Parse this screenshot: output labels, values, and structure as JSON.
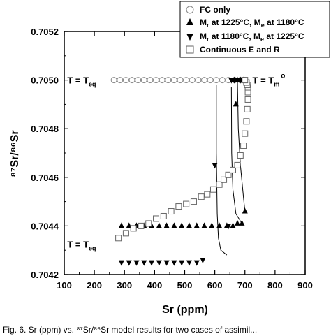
{
  "chart_data": {
    "type": "scatter",
    "xlabel": "Sr (ppm)",
    "ylabel": "⁸⁷Sr/⁸⁶Sr",
    "xlim": [
      100,
      900
    ],
    "ylim": [
      0.7042,
      0.7052
    ],
    "xticks": [
      "100",
      "200",
      "300",
      "400",
      "500",
      "600",
      "700",
      "800",
      "900"
    ],
    "yticks": [
      "0.7042",
      "0.7044",
      "0.7046",
      "0.7048",
      "0.7050",
      "0.7052"
    ],
    "legend_position": "top-right",
    "series": [
      {
        "name": "FC only",
        "marker": "open-circle",
        "color": "#888888",
        "x": [
          265,
          285,
          305,
          325,
          345,
          365,
          385,
          405,
          425,
          445,
          465,
          485,
          505,
          525,
          545,
          565,
          585,
          605,
          625,
          645,
          665,
          685,
          700
        ],
        "y": [
          0.705,
          0.705,
          0.705,
          0.705,
          0.705,
          0.705,
          0.705,
          0.705,
          0.705,
          0.705,
          0.705,
          0.705,
          0.705,
          0.705,
          0.705,
          0.705,
          0.705,
          0.705,
          0.705,
          0.705,
          0.705,
          0.705,
          0.705
        ]
      },
      {
        "name_prefix": "M",
        "name_sub": "r",
        "name_mid": " at 1225°C, M",
        "name_sub2": "e",
        "name_suffix": " at 1180°C",
        "marker": "up-triangle",
        "color": "#000000",
        "x": [
          290,
          315,
          340,
          365,
          390,
          415,
          440,
          465,
          490,
          515,
          540,
          565,
          590,
          615,
          640,
          660,
          675,
          690,
          700,
          670,
          665,
          675,
          685,
          690,
          695
        ],
        "y": [
          0.7044,
          0.7044,
          0.7044,
          0.7044,
          0.7044,
          0.7044,
          0.7044,
          0.7044,
          0.7044,
          0.7044,
          0.7044,
          0.7044,
          0.7044,
          0.7044,
          0.7044,
          0.7044,
          0.70441,
          0.70441,
          0.70446,
          0.7049,
          0.705,
          0.705,
          0.705,
          0.705,
          0.705
        ]
      },
      {
        "name_prefix": "M",
        "name_sub": "r",
        "name_mid": " at 1180°C, M",
        "name_sub2": "e",
        "name_suffix": " at 1225°C",
        "marker": "down-triangle",
        "color": "#000000",
        "x": [
          290,
          315,
          340,
          365,
          390,
          415,
          440,
          465,
          490,
          515,
          540,
          560,
          600,
          645,
          655,
          665,
          675,
          685,
          690
        ],
        "y": [
          0.70425,
          0.70425,
          0.70425,
          0.70425,
          0.70425,
          0.70425,
          0.70425,
          0.70425,
          0.70425,
          0.70425,
          0.70425,
          0.70426,
          0.70465,
          0.7044,
          0.705,
          0.705,
          0.705,
          0.705,
          0.705
        ]
      },
      {
        "name": "Continuous E and R",
        "marker": "open-square",
        "color": "#666666",
        "x": [
          280,
          305,
          330,
          355,
          380,
          405,
          430,
          455,
          480,
          505,
          530,
          555,
          575,
          595,
          615,
          630,
          645,
          660,
          675,
          685,
          695,
          700,
          705,
          708,
          710,
          710,
          710,
          708,
          705,
          700
        ],
        "y": [
          0.70435,
          0.70437,
          0.70439,
          0.7044,
          0.70441,
          0.70443,
          0.70444,
          0.70446,
          0.70448,
          0.70449,
          0.7045,
          0.70452,
          0.70453,
          0.70455,
          0.70457,
          0.70459,
          0.70461,
          0.70463,
          0.70465,
          0.70469,
          0.70473,
          0.70478,
          0.70483,
          0.70488,
          0.70492,
          0.70495,
          0.70497,
          0.70498,
          0.70499,
          0.705
        ]
      }
    ],
    "curves": [
      {
        "marker": "down-triangle",
        "x": [
          605,
          605,
          608,
          612,
          620,
          640
        ],
        "y": [
          0.70498,
          0.7047,
          0.70445,
          0.70435,
          0.7043,
          0.70428
        ]
      },
      {
        "marker": "up-triangle",
        "x": [
          675,
          678,
          685,
          695,
          700
        ],
        "y": [
          0.705,
          0.7048,
          0.70465,
          0.70452,
          0.70446
        ]
      },
      {
        "marker": "down-triangle",
        "x": [
          655,
          656,
          660,
          670,
          690
        ],
        "y": [
          0.70497,
          0.7047,
          0.70455,
          0.70445,
          0.70441
        ]
      }
    ],
    "annotations": [
      {
        "prefix": "T = T",
        "sub": "eq",
        "sup": "",
        "x": 110,
        "y": 0.705
      },
      {
        "prefix": "T = T",
        "sub": "m",
        "sup": "o",
        "x": 725,
        "y": 0.705
      },
      {
        "prefix": "T = T",
        "sub": "eq",
        "sup": "",
        "x": 110,
        "y": 0.704325
      }
    ]
  },
  "caption": "Fig. 6. Sr (ppm) vs. ⁸⁷Sr/⁸⁶Sr model results for two cases of assimil..."
}
